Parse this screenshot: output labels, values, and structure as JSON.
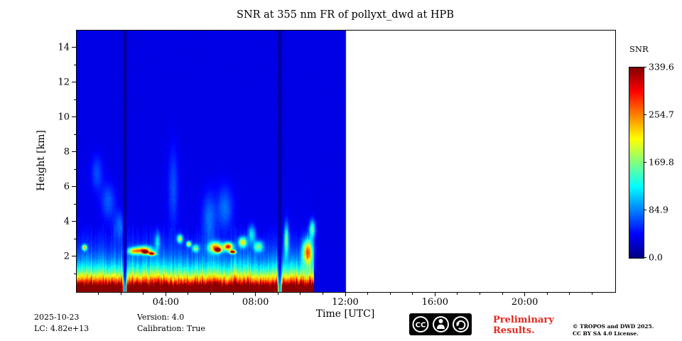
{
  "title": "SNR at 355 nm FR of pollyxt_dwd at HPB",
  "axes": {
    "xlabel": "Time [UTC]",
    "ylabel": "Height [km]"
  },
  "colorbar": {
    "label": "SNR",
    "ticks": [
      "339.6",
      "254.7",
      "169.8",
      "84.9",
      "0.0"
    ]
  },
  "footer": {
    "date": "2025-10-23",
    "lc": "LC: 4.82e+13",
    "version": "Version: 4.0",
    "calibration": "Calibration: True",
    "preliminary_line1": "Preliminary",
    "preliminary_line2": "Results.",
    "copyright_line1": "© TROPOS and DWD 2025.",
    "copyright_line2": "CC BY SA 4.0 License.",
    "badge_cc": "CC"
  },
  "colors": {
    "preliminary_red": "#e02a20",
    "badge_black": "#000000"
  },
  "chart_data": {
    "type": "heatmap",
    "title": "SNR at 355 nm FR of pollyxt_dwd at HPB",
    "xlabel": "Time [UTC]",
    "ylabel": "Height [km]",
    "colorbar_label": "SNR",
    "colormap": "jet",
    "vmin": 0.0,
    "vmax": 339.6,
    "colorbar_tick_values": [
      339.6,
      254.7,
      169.8,
      84.9,
      0.0
    ],
    "x_range_hours": [
      0,
      24
    ],
    "y_range_km": [
      0,
      15
    ],
    "x_ticks": [
      "04:00",
      "08:00",
      "12:00",
      "16:00",
      "20:00"
    ],
    "x_tick_hours": [
      4,
      8,
      12,
      16,
      20
    ],
    "y_ticks": [
      2,
      4,
      6,
      8,
      10,
      12,
      14
    ],
    "data_time_range_hours": [
      0,
      12
    ],
    "background_value_norm": 0.1,
    "surface_layer": {
      "end_hour": 10.58,
      "full_value_height_km": 0.33,
      "decay_km": 0.78
    },
    "gaps_hours": [
      2.15,
      9.05
    ],
    "features": [
      {
        "t": 0.35,
        "h": 2.55,
        "st": 0.1,
        "sh": 0.15,
        "a": 0.55
      },
      {
        "t": 0.9,
        "h": 6.8,
        "st": 0.25,
        "sh": 1.0,
        "a": 0.1
      },
      {
        "t": 1.4,
        "h": 5.2,
        "st": 0.3,
        "sh": 1.0,
        "a": 0.11
      },
      {
        "t": 1.9,
        "h": 3.8,
        "st": 0.25,
        "sh": 0.8,
        "a": 0.12
      },
      {
        "t": 2.55,
        "h": 2.35,
        "st": 0.28,
        "sh": 0.18,
        "a": 0.45
      },
      {
        "t": 3.0,
        "h": 2.4,
        "st": 0.35,
        "sh": 0.22,
        "a": 0.55
      },
      {
        "t": 3.05,
        "h": 2.3,
        "st": 0.12,
        "sh": 0.09,
        "a": 0.95
      },
      {
        "t": 3.35,
        "h": 2.2,
        "st": 0.15,
        "sh": 0.1,
        "a": 0.85
      },
      {
        "t": 3.6,
        "h": 2.9,
        "st": 0.12,
        "sh": 0.5,
        "a": 0.2
      },
      {
        "t": 4.3,
        "h": 6.0,
        "st": 0.22,
        "sh": 2.2,
        "a": 0.1
      },
      {
        "t": 4.6,
        "h": 3.05,
        "st": 0.12,
        "sh": 0.22,
        "a": 0.45
      },
      {
        "t": 5.0,
        "h": 2.75,
        "st": 0.1,
        "sh": 0.15,
        "a": 0.5
      },
      {
        "t": 5.3,
        "h": 2.5,
        "st": 0.15,
        "sh": 0.2,
        "a": 0.35
      },
      {
        "t": 5.9,
        "h": 4.2,
        "st": 0.3,
        "sh": 1.4,
        "a": 0.13
      },
      {
        "t": 6.2,
        "h": 2.55,
        "st": 0.3,
        "sh": 0.3,
        "a": 0.6
      },
      {
        "t": 6.3,
        "h": 2.4,
        "st": 0.12,
        "sh": 0.1,
        "a": 0.95
      },
      {
        "t": 6.75,
        "h": 2.6,
        "st": 0.2,
        "sh": 0.22,
        "a": 0.7
      },
      {
        "t": 6.95,
        "h": 2.3,
        "st": 0.13,
        "sh": 0.1,
        "a": 0.9
      },
      {
        "t": 6.6,
        "h": 4.8,
        "st": 0.35,
        "sh": 1.2,
        "a": 0.13
      },
      {
        "t": 7.4,
        "h": 2.85,
        "st": 0.18,
        "sh": 0.28,
        "a": 0.5
      },
      {
        "t": 7.8,
        "h": 3.3,
        "st": 0.15,
        "sh": 0.5,
        "a": 0.25
      },
      {
        "t": 8.1,
        "h": 2.6,
        "st": 0.2,
        "sh": 0.3,
        "a": 0.35
      },
      {
        "t": 9.35,
        "h": 3.0,
        "st": 0.1,
        "sh": 0.9,
        "a": 0.35
      },
      {
        "t": 10.3,
        "h": 2.3,
        "st": 0.22,
        "sh": 0.7,
        "a": 0.6
      },
      {
        "t": 10.5,
        "h": 3.6,
        "st": 0.13,
        "sh": 0.5,
        "a": 0.35
      }
    ]
  }
}
